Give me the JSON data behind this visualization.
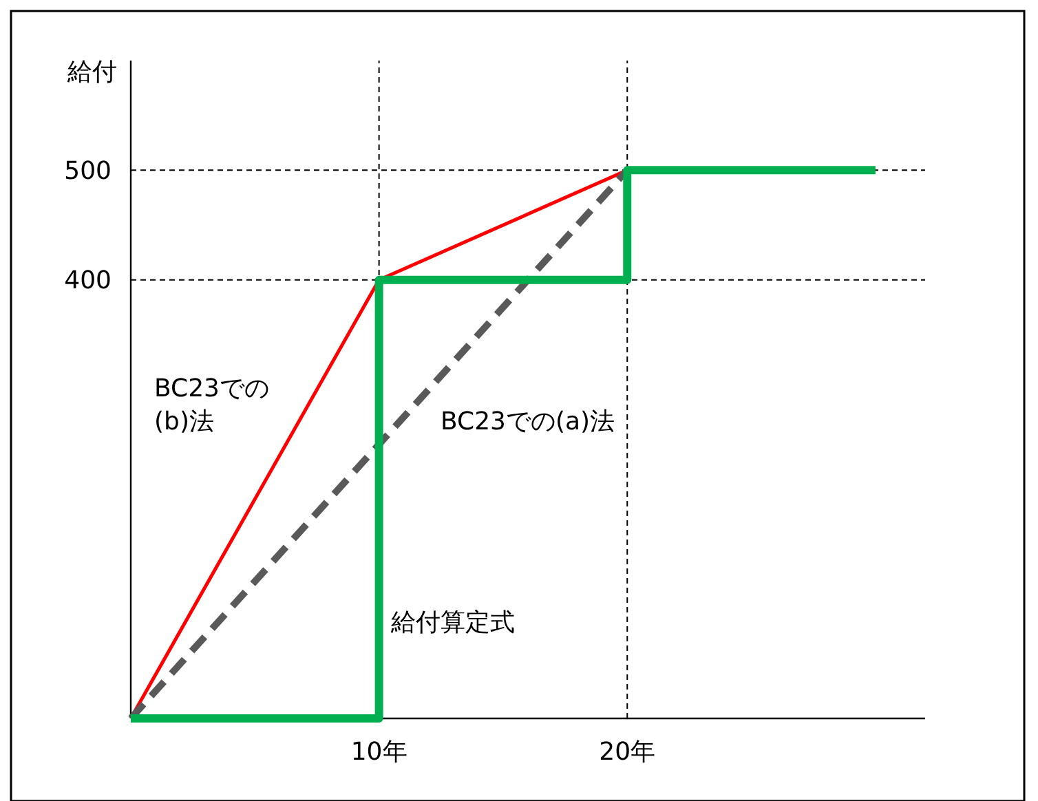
{
  "chart_data": {
    "type": "line",
    "ylabel": "給付",
    "xlim": [
      0,
      32
    ],
    "ylim": [
      0,
      600
    ],
    "xticks": [
      {
        "value": 10,
        "label": "10年"
      },
      {
        "value": 20,
        "label": "20年"
      }
    ],
    "yticks": [
      400,
      500
    ],
    "grid": true,
    "marker": "none",
    "series": [
      {
        "name": "BC23での(b)法",
        "color": "#ff0000",
        "x": [
          0,
          10,
          20
        ],
        "values": [
          0,
          400,
          500
        ],
        "line_style": "solid"
      },
      {
        "name": "BC23での(a)法",
        "color": "#595959",
        "x": [
          0,
          20
        ],
        "values": [
          0,
          500
        ],
        "line_style": "dashed"
      },
      {
        "name": "給付算定式",
        "color": "#00b050",
        "x": [
          0,
          10,
          10,
          20,
          20,
          30
        ],
        "values": [
          0,
          0,
          400,
          400,
          500,
          500
        ],
        "line_style": "solid"
      }
    ]
  }
}
